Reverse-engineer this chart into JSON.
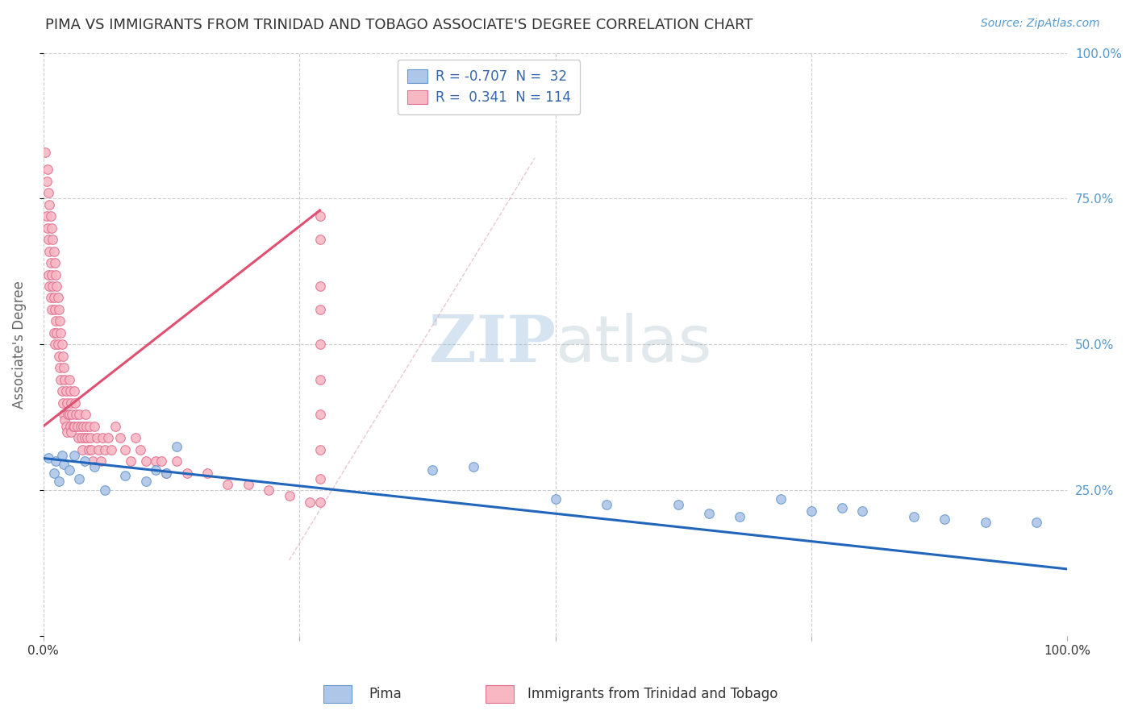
{
  "title": "PIMA VS IMMIGRANTS FROM TRINIDAD AND TOBAGO ASSOCIATE'S DEGREE CORRELATION CHART",
  "source": "Source: ZipAtlas.com",
  "ylabel": "Associate's Degree",
  "xlim": [
    0.0,
    1.0
  ],
  "ylim": [
    0.0,
    1.0
  ],
  "pima_R": -0.707,
  "pima_N": 32,
  "tt_R": 0.341,
  "tt_N": 114,
  "legend_labels": [
    "Pima",
    "Immigrants from Trinidad and Tobago"
  ],
  "pima_color": "#aec6e8",
  "pima_edge_color": "#6699cc",
  "pima_line_color": "#2266bb",
  "tt_color": "#f7b8c4",
  "tt_edge_color": "#e07090",
  "tt_line_color": "#e05070",
  "watermark_zip": "ZIP",
  "watermark_atlas": "atlas",
  "background_color": "#ffffff",
  "grid_color": "#cccccc",
  "title_color": "#333333",
  "axis_label_color": "#666666",
  "right_tick_color": "#5599cc",
  "source_color": "#5599cc",
  "pima_trend_x0": 0.0,
  "pima_trend_x1": 1.0,
  "pima_trend_y0": 0.305,
  "pima_trend_y1": 0.115,
  "tt_trend_x0": 0.0,
  "tt_trend_x1": 0.27,
  "tt_trend_y0": 0.36,
  "tt_trend_y1": 0.73,
  "ref_line_x0": 0.24,
  "ref_line_x1": 0.48,
  "ref_line_y0": 0.13,
  "ref_line_y1": 0.82,
  "pima_x": [
    0.005,
    0.01,
    0.012,
    0.015,
    0.018,
    0.02,
    0.025,
    0.03,
    0.035,
    0.04,
    0.05,
    0.06,
    0.08,
    0.1,
    0.11,
    0.12,
    0.13,
    0.38,
    0.42,
    0.5,
    0.55,
    0.62,
    0.65,
    0.68,
    0.72,
    0.75,
    0.78,
    0.8,
    0.85,
    0.88,
    0.92,
    0.97
  ],
  "pima_y": [
    0.305,
    0.28,
    0.3,
    0.265,
    0.31,
    0.295,
    0.285,
    0.31,
    0.27,
    0.3,
    0.29,
    0.25,
    0.275,
    0.265,
    0.285,
    0.28,
    0.325,
    0.285,
    0.29,
    0.235,
    0.225,
    0.225,
    0.21,
    0.205,
    0.235,
    0.215,
    0.22,
    0.215,
    0.205,
    0.2,
    0.195,
    0.195
  ],
  "tt_x": [
    0.002,
    0.003,
    0.003,
    0.004,
    0.004,
    0.005,
    0.005,
    0.005,
    0.006,
    0.006,
    0.006,
    0.007,
    0.007,
    0.007,
    0.008,
    0.008,
    0.008,
    0.009,
    0.009,
    0.01,
    0.01,
    0.01,
    0.011,
    0.011,
    0.011,
    0.012,
    0.012,
    0.013,
    0.013,
    0.014,
    0.014,
    0.015,
    0.015,
    0.016,
    0.016,
    0.017,
    0.017,
    0.018,
    0.018,
    0.019,
    0.019,
    0.02,
    0.02,
    0.021,
    0.021,
    0.022,
    0.022,
    0.023,
    0.023,
    0.024,
    0.025,
    0.025,
    0.026,
    0.026,
    0.027,
    0.027,
    0.028,
    0.029,
    0.03,
    0.03,
    0.031,
    0.032,
    0.033,
    0.034,
    0.035,
    0.036,
    0.037,
    0.038,
    0.039,
    0.04,
    0.041,
    0.042,
    0.043,
    0.044,
    0.045,
    0.046,
    0.047,
    0.048,
    0.05,
    0.052,
    0.054,
    0.056,
    0.058,
    0.06,
    0.063,
    0.066,
    0.07,
    0.075,
    0.08,
    0.085,
    0.09,
    0.095,
    0.1,
    0.11,
    0.115,
    0.12,
    0.13,
    0.14,
    0.16,
    0.18,
    0.2,
    0.22,
    0.24,
    0.26,
    0.27,
    0.27,
    0.27,
    0.27,
    0.27,
    0.27,
    0.27,
    0.27,
    0.27,
    0.27
  ],
  "tt_y": [
    0.83,
    0.78,
    0.72,
    0.8,
    0.7,
    0.76,
    0.68,
    0.62,
    0.74,
    0.66,
    0.6,
    0.72,
    0.64,
    0.58,
    0.7,
    0.62,
    0.56,
    0.68,
    0.6,
    0.66,
    0.58,
    0.52,
    0.64,
    0.56,
    0.5,
    0.62,
    0.54,
    0.6,
    0.52,
    0.58,
    0.5,
    0.56,
    0.48,
    0.54,
    0.46,
    0.52,
    0.44,
    0.5,
    0.42,
    0.48,
    0.4,
    0.46,
    0.38,
    0.44,
    0.37,
    0.42,
    0.36,
    0.4,
    0.35,
    0.38,
    0.44,
    0.38,
    0.42,
    0.36,
    0.4,
    0.35,
    0.38,
    0.36,
    0.42,
    0.36,
    0.4,
    0.38,
    0.36,
    0.34,
    0.38,
    0.36,
    0.34,
    0.32,
    0.36,
    0.34,
    0.38,
    0.36,
    0.34,
    0.32,
    0.36,
    0.34,
    0.32,
    0.3,
    0.36,
    0.34,
    0.32,
    0.3,
    0.34,
    0.32,
    0.34,
    0.32,
    0.36,
    0.34,
    0.32,
    0.3,
    0.34,
    0.32,
    0.3,
    0.3,
    0.3,
    0.28,
    0.3,
    0.28,
    0.28,
    0.26,
    0.26,
    0.25,
    0.24,
    0.23,
    0.72,
    0.68,
    0.6,
    0.56,
    0.5,
    0.44,
    0.38,
    0.32,
    0.27,
    0.23
  ]
}
